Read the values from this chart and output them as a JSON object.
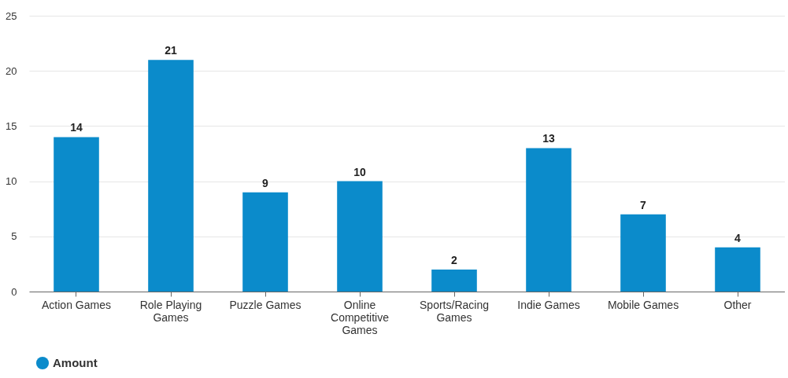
{
  "chart_data": {
    "type": "bar",
    "categories": [
      "Action Games",
      "Role Playing Games",
      "Puzzle Games",
      "Online Competitive Games",
      "Sports/Racing Games",
      "Indie Games",
      "Mobile Games",
      "Other"
    ],
    "series": [
      {
        "name": "Amount",
        "color": "#0b8bcb",
        "values": [
          14,
          21,
          9,
          10,
          2,
          13,
          7,
          4
        ]
      }
    ],
    "ylim": [
      0,
      25
    ],
    "yticks": [
      0,
      5,
      10,
      15,
      20,
      25
    ],
    "grid": "y",
    "legend": "bottom",
    "data_labels": true
  }
}
